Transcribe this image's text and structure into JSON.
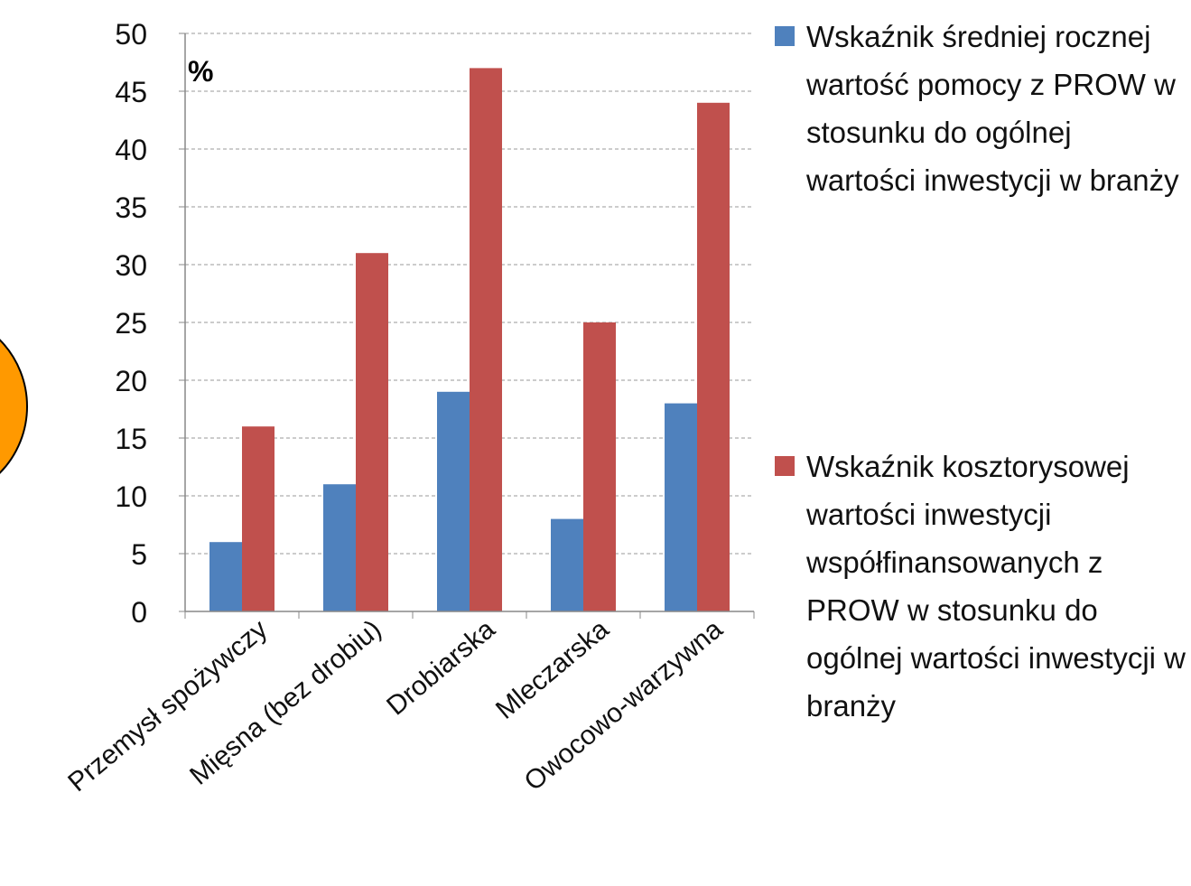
{
  "chart_data": {
    "type": "bar",
    "y_label": "%",
    "categories": [
      "Przemysł spożywczy",
      "Mięsna (bez drobiu)",
      "Drobiarska",
      "Mleczarska",
      "Owocowo-warzywna"
    ],
    "series": [
      {
        "name": "Wskaźnik średniej rocznej wartość pomocy z PROW w stosunku do ogólnej wartości inwestycji w branży",
        "color": "#4f81bd",
        "values": [
          6,
          11,
          19,
          8,
          18
        ]
      },
      {
        "name": "Wskaźnik kosztorysowej wartości inwestycji współfinansowanych z PROW w stosunku do ogólnej wartości inwestycji w branży",
        "color": "#c0504d",
        "values": [
          16,
          31,
          47,
          25,
          44
        ]
      }
    ],
    "ylim": [
      0,
      50
    ],
    "yticks": [
      0,
      5,
      10,
      15,
      20,
      25,
      30,
      35,
      40,
      45,
      50
    ],
    "grid": true,
    "legend": "right"
  }
}
